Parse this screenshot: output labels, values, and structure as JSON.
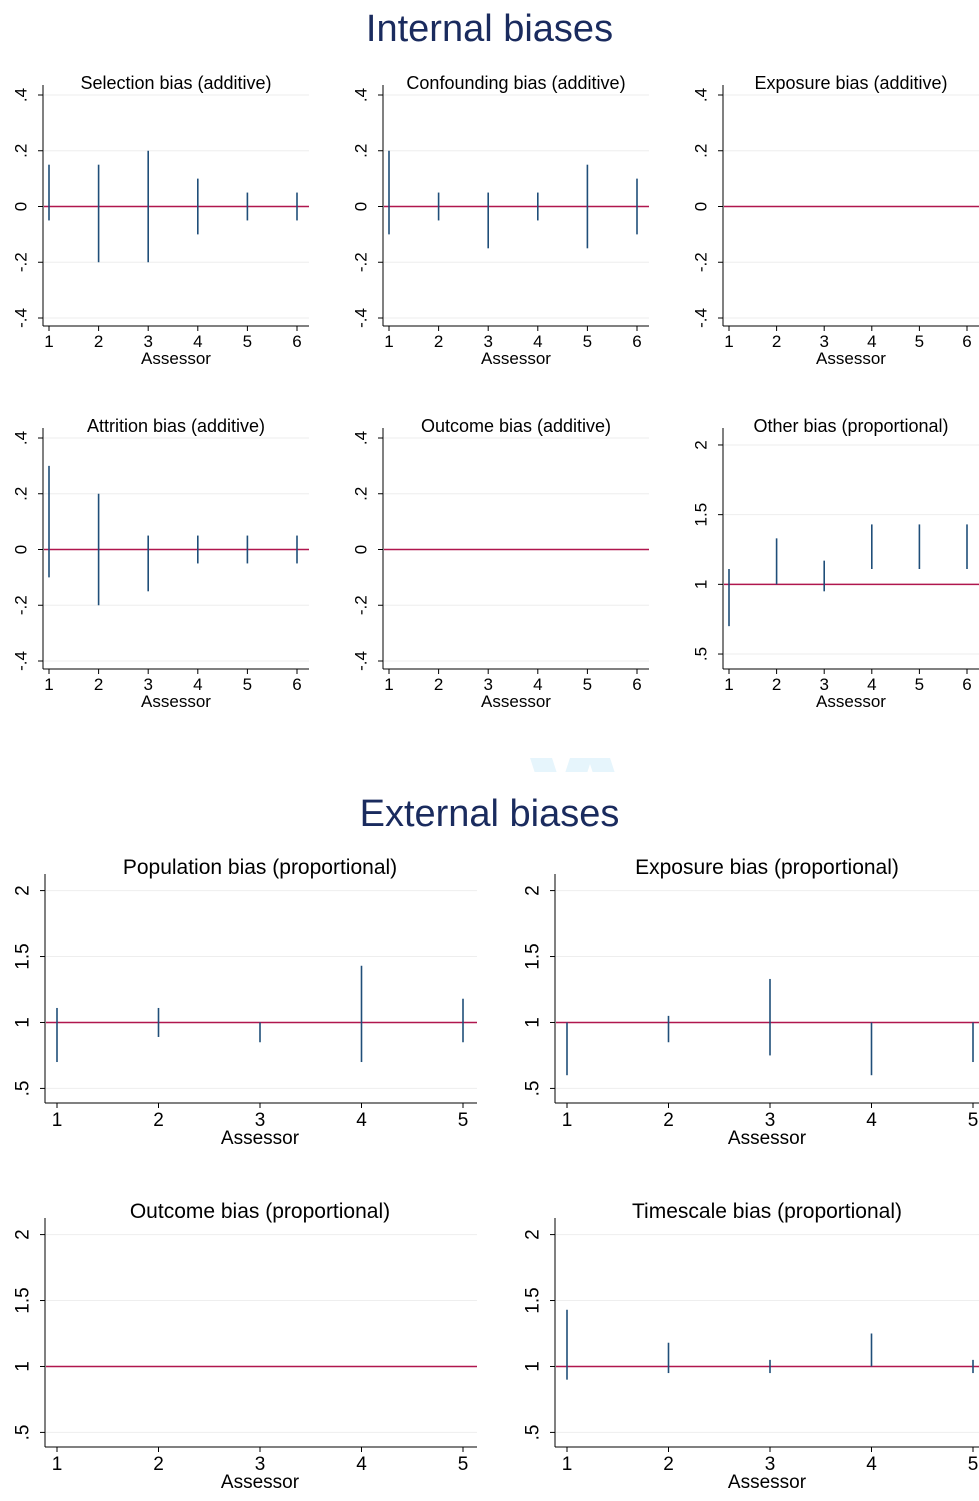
{
  "sections": {
    "internal_title": "Internal biases",
    "external_title": "External biases"
  },
  "colors": {
    "section_title": "#1a2b5e",
    "bar": "#1f4e79",
    "reference_line": "#b0164e",
    "grid": "#eeeeee",
    "axis": "#000000"
  },
  "chart_data": [
    {
      "type": "range-bar",
      "title": "Selection bias (additive)",
      "xlabel": "Assessor",
      "ylabel": "",
      "x": [
        1,
        2,
        3,
        4,
        5,
        6
      ],
      "lower": [
        -0.05,
        -0.2,
        -0.2,
        -0.1,
        -0.05,
        -0.05
      ],
      "upper": [
        0.15,
        0.15,
        0.2,
        0.1,
        0.05,
        0.05
      ],
      "reference": 0,
      "ylim": [
        -0.4,
        0.4
      ],
      "yticks": [
        -0.4,
        -0.2,
        0,
        0.2,
        0.4
      ],
      "yticklabels": [
        "-.4",
        "-.2",
        "0",
        ".2",
        ".4"
      ],
      "xticks": [
        1,
        2,
        3,
        4,
        5,
        6
      ],
      "grid": true
    },
    {
      "type": "range-bar",
      "title": "Confounding bias (additive)",
      "xlabel": "Assessor",
      "ylabel": "",
      "x": [
        1,
        2,
        3,
        4,
        5,
        6
      ],
      "lower": [
        -0.1,
        -0.05,
        -0.15,
        -0.05,
        -0.15,
        -0.1
      ],
      "upper": [
        0.2,
        0.05,
        0.05,
        0.05,
        0.15,
        0.1
      ],
      "reference": 0,
      "ylim": [
        -0.4,
        0.4
      ],
      "yticks": [
        -0.4,
        -0.2,
        0,
        0.2,
        0.4
      ],
      "yticklabels": [
        "-.4",
        "-.2",
        "0",
        ".2",
        ".4"
      ],
      "xticks": [
        1,
        2,
        3,
        4,
        5,
        6
      ],
      "grid": true
    },
    {
      "type": "range-bar",
      "title": "Exposure bias (additive)",
      "xlabel": "Assessor",
      "ylabel": "",
      "x": [],
      "lower": [],
      "upper": [],
      "reference": 0,
      "ylim": [
        -0.4,
        0.4
      ],
      "yticks": [
        -0.4,
        -0.2,
        0,
        0.2,
        0.4
      ],
      "yticklabels": [
        "-.4",
        "-.2",
        "0",
        ".2",
        ".4"
      ],
      "xticks": [
        1,
        2,
        3,
        4,
        5,
        6
      ],
      "grid": true
    },
    {
      "type": "range-bar",
      "title": "Attrition bias (additive)",
      "xlabel": "Assessor",
      "ylabel": "",
      "x": [
        1,
        2,
        3,
        4,
        5,
        6
      ],
      "lower": [
        -0.1,
        -0.2,
        -0.15,
        -0.05,
        -0.05,
        -0.05
      ],
      "upper": [
        0.3,
        0.2,
        0.05,
        0.05,
        0.05,
        0.05
      ],
      "reference": 0,
      "ylim": [
        -0.4,
        0.4
      ],
      "yticks": [
        -0.4,
        -0.2,
        0,
        0.2,
        0.4
      ],
      "yticklabels": [
        "-.4",
        "-.2",
        "0",
        ".2",
        ".4"
      ],
      "xticks": [
        1,
        2,
        3,
        4,
        5,
        6
      ],
      "grid": true
    },
    {
      "type": "range-bar",
      "title": "Outcome bias (additive)",
      "xlabel": "Assessor",
      "ylabel": "",
      "x": [],
      "lower": [],
      "upper": [],
      "reference": 0,
      "ylim": [
        -0.4,
        0.4
      ],
      "yticks": [
        -0.4,
        -0.2,
        0,
        0.2,
        0.4
      ],
      "yticklabels": [
        "-.4",
        "-.2",
        "0",
        ".2",
        ".4"
      ],
      "xticks": [
        1,
        2,
        3,
        4,
        5,
        6
      ],
      "grid": true
    },
    {
      "type": "range-bar",
      "title": "Other bias (proportional)",
      "xlabel": "Assessor",
      "ylabel": "",
      "x": [
        1,
        2,
        3,
        4,
        5,
        6
      ],
      "lower": [
        0.7,
        1.0,
        0.95,
        1.11,
        1.11,
        1.11
      ],
      "upper": [
        1.11,
        1.33,
        1.17,
        1.43,
        1.43,
        1.43
      ],
      "reference": 1,
      "ylim": [
        0.45,
        2.05
      ],
      "yticks": [
        0.5,
        1,
        1.5,
        2
      ],
      "yticklabels": [
        ".5",
        "1",
        "1.5",
        "2"
      ],
      "xticks": [
        1,
        2,
        3,
        4,
        5,
        6
      ],
      "grid": true
    },
    {
      "type": "range-bar",
      "title": "Population bias (proportional)",
      "xlabel": "Assessor",
      "ylabel": "",
      "x": [
        1,
        2,
        3,
        4,
        5
      ],
      "lower": [
        0.7,
        0.89,
        0.85,
        0.7,
        0.85
      ],
      "upper": [
        1.11,
        1.11,
        1.0,
        1.43,
        1.18
      ],
      "reference": 1,
      "ylim": [
        0.45,
        2.05
      ],
      "yticks": [
        0.5,
        1,
        1.5,
        2
      ],
      "yticklabels": [
        ".5",
        "1",
        "1.5",
        "2"
      ],
      "xticks": [
        1,
        2,
        3,
        4,
        5
      ],
      "grid": true
    },
    {
      "type": "range-bar",
      "title": "Exposure bias (proportional)",
      "xlabel": "Assessor",
      "ylabel": "",
      "x": [
        1,
        2,
        3,
        4,
        5
      ],
      "lower": [
        0.6,
        0.85,
        0.75,
        0.6,
        0.7
      ],
      "upper": [
        1.0,
        1.05,
        1.33,
        1.0,
        1.0
      ],
      "reference": 1,
      "ylim": [
        0.45,
        2.05
      ],
      "yticks": [
        0.5,
        1,
        1.5,
        2
      ],
      "yticklabels": [
        ".5",
        "1",
        "1.5",
        "2"
      ],
      "xticks": [
        1,
        2,
        3,
        4,
        5
      ],
      "grid": true
    },
    {
      "type": "range-bar",
      "title": "Outcome bias (proportional)",
      "xlabel": "Assessor",
      "ylabel": "",
      "x": [],
      "lower": [],
      "upper": [],
      "reference": 1,
      "ylim": [
        0.45,
        2.05
      ],
      "yticks": [
        0.5,
        1,
        1.5,
        2
      ],
      "yticklabels": [
        ".5",
        "1",
        "1.5",
        "2"
      ],
      "xticks": [
        1,
        2,
        3,
        4,
        5
      ],
      "grid": true
    },
    {
      "type": "range-bar",
      "title": "Timescale bias (proportional)",
      "xlabel": "Assessor",
      "ylabel": "",
      "x": [
        1,
        2,
        3,
        4,
        5
      ],
      "lower": [
        0.9,
        0.95,
        0.95,
        1.0,
        0.95
      ],
      "upper": [
        1.43,
        1.18,
        1.05,
        1.25,
        1.05
      ],
      "reference": 1,
      "ylim": [
        0.45,
        2.05
      ],
      "yticks": [
        0.5,
        1,
        1.5,
        2
      ],
      "yticklabels": [
        ".5",
        "1",
        "1.5",
        "2"
      ],
      "xticks": [
        1,
        2,
        3,
        4,
        5
      ],
      "grid": true
    }
  ]
}
